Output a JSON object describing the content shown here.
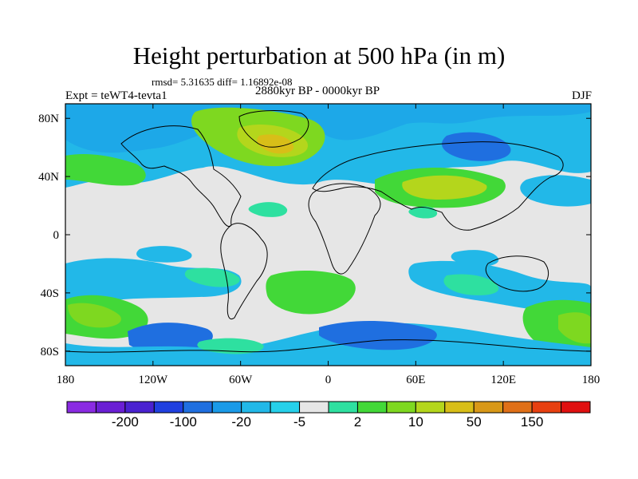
{
  "title": "Height perturbation at 500 hPa (in m)",
  "stats": "rmsd= 5.31635 diff= 1.16892e-08",
  "period": "2880kyr BP - 0000kyr BP",
  "experiment": "Expt = teWT4-tevta1",
  "season": "DJF",
  "lon_ticks": [
    "180",
    "120W",
    "60W",
    "0",
    "60E",
    "120E",
    "180"
  ],
  "lat_ticks": [
    "80N",
    "40N",
    "0",
    "40S",
    "80S"
  ],
  "colorbar": {
    "colors": [
      "#8a2be2",
      "#6a1fd4",
      "#4a22d0",
      "#2040e0",
      "#1f6fe0",
      "#1a9ae8",
      "#22b8e8",
      "#26d0ea",
      "#e6e6e6",
      "#2ee0a0",
      "#42d838",
      "#7ed820",
      "#b4d61c",
      "#d8be18",
      "#d89818",
      "#e07018",
      "#e84010",
      "#e01010"
    ],
    "labels": [
      "-200",
      "-100",
      "-20",
      "-5",
      "2",
      "10",
      "50",
      "150"
    ]
  }
}
